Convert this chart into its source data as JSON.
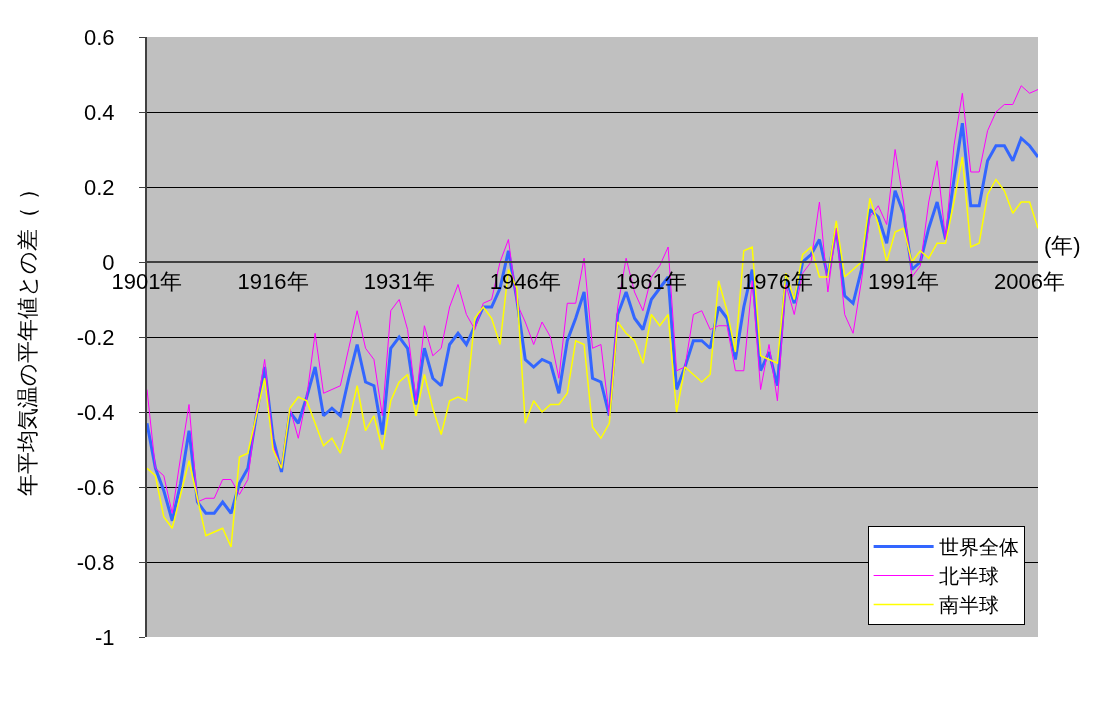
{
  "chart_data": {
    "type": "line",
    "xlabel": "(年)",
    "ylabel": "年平均気温の平年値との差（ ）",
    "x": [
      1901,
      1902,
      1903,
      1904,
      1905,
      1906,
      1907,
      1908,
      1909,
      1910,
      1911,
      1912,
      1913,
      1914,
      1915,
      1916,
      1917,
      1918,
      1919,
      1920,
      1921,
      1922,
      1923,
      1924,
      1925,
      1926,
      1927,
      1928,
      1929,
      1930,
      1931,
      1932,
      1933,
      1934,
      1935,
      1936,
      1937,
      1938,
      1939,
      1940,
      1941,
      1942,
      1943,
      1944,
      1945,
      1946,
      1947,
      1948,
      1949,
      1950,
      1951,
      1952,
      1953,
      1954,
      1955,
      1956,
      1957,
      1958,
      1959,
      1960,
      1961,
      1962,
      1963,
      1964,
      1965,
      1966,
      1967,
      1968,
      1969,
      1970,
      1971,
      1972,
      1973,
      1974,
      1975,
      1976,
      1977,
      1978,
      1979,
      1980,
      1981,
      1982,
      1983,
      1984,
      1985,
      1986,
      1987,
      1988,
      1989,
      1990,
      1991,
      1992,
      1993,
      1994,
      1995,
      1996,
      1997,
      1998,
      1999,
      2000,
      2001,
      2002,
      2003,
      2004,
      2005,
      2006,
      2007
    ],
    "series": [
      {
        "name": "世界全体",
        "color": "#3366ff",
        "values": [
          -0.43,
          -0.55,
          -0.61,
          -0.69,
          -0.59,
          -0.45,
          -0.64,
          -0.67,
          -0.67,
          -0.64,
          -0.67,
          -0.59,
          -0.55,
          -0.41,
          -0.28,
          -0.47,
          -0.56,
          -0.4,
          -0.43,
          -0.36,
          -0.28,
          -0.41,
          -0.39,
          -0.41,
          -0.31,
          -0.22,
          -0.32,
          -0.33,
          -0.46,
          -0.23,
          -0.2,
          -0.23,
          -0.38,
          -0.23,
          -0.31,
          -0.33,
          -0.22,
          -0.19,
          -0.22,
          -0.17,
          -0.12,
          -0.12,
          -0.07,
          0.03,
          -0.1,
          -0.26,
          -0.28,
          -0.26,
          -0.27,
          -0.35,
          -0.21,
          -0.15,
          -0.08,
          -0.31,
          -0.32,
          -0.41,
          -0.14,
          -0.08,
          -0.15,
          -0.18,
          -0.1,
          -0.07,
          -0.04,
          -0.34,
          -0.28,
          -0.21,
          -0.21,
          -0.23,
          -0.12,
          -0.15,
          -0.26,
          -0.12,
          -0.02,
          -0.29,
          -0.24,
          -0.33,
          -0.04,
          -0.11,
          0.0,
          0.02,
          0.06,
          -0.04,
          0.09,
          -0.09,
          -0.11,
          -0.02,
          0.14,
          0.12,
          0.05,
          0.19,
          0.13,
          -0.02,
          0.0,
          0.09,
          0.16,
          0.06,
          0.22,
          0.37,
          0.15,
          0.15,
          0.27,
          0.31,
          0.31,
          0.27,
          0.33,
          0.31,
          0.28
        ]
      },
      {
        "name": "北半球",
        "color": "#ff00ff",
        "values": [
          -0.34,
          -0.55,
          -0.57,
          -0.67,
          -0.52,
          -0.38,
          -0.64,
          -0.63,
          -0.63,
          -0.58,
          -0.58,
          -0.62,
          -0.58,
          -0.4,
          -0.26,
          -0.49,
          -0.55,
          -0.39,
          -0.47,
          -0.36,
          -0.19,
          -0.35,
          -0.34,
          -0.33,
          -0.23,
          -0.13,
          -0.23,
          -0.26,
          -0.41,
          -0.13,
          -0.1,
          -0.18,
          -0.37,
          -0.17,
          -0.25,
          -0.23,
          -0.12,
          -0.06,
          -0.14,
          -0.18,
          -0.11,
          -0.1,
          0.0,
          0.06,
          -0.11,
          -0.16,
          -0.22,
          -0.16,
          -0.2,
          -0.31,
          -0.11,
          -0.11,
          0.01,
          -0.23,
          -0.22,
          -0.41,
          -0.12,
          0.01,
          -0.08,
          -0.13,
          -0.04,
          -0.01,
          0.04,
          -0.29,
          -0.28,
          -0.14,
          -0.13,
          -0.18,
          -0.17,
          -0.17,
          -0.29,
          -0.29,
          -0.05,
          -0.34,
          -0.22,
          -0.37,
          -0.06,
          -0.14,
          -0.03,
          0.0,
          0.16,
          -0.08,
          0.09,
          -0.14,
          -0.19,
          -0.05,
          0.12,
          0.15,
          0.1,
          0.3,
          0.16,
          -0.04,
          -0.01,
          0.16,
          0.27,
          0.06,
          0.31,
          0.45,
          0.24,
          0.24,
          0.35,
          0.4,
          0.42,
          0.42,
          0.47,
          0.45,
          0.46
        ]
      },
      {
        "name": "南半球",
        "color": "#ffff00",
        "values": [
          -0.55,
          -0.57,
          -0.68,
          -0.71,
          -0.62,
          -0.53,
          -0.63,
          -0.73,
          -0.72,
          -0.71,
          -0.76,
          -0.52,
          -0.51,
          -0.41,
          -0.31,
          -0.5,
          -0.55,
          -0.39,
          -0.36,
          -0.37,
          -0.43,
          -0.49,
          -0.47,
          -0.51,
          -0.43,
          -0.33,
          -0.45,
          -0.41,
          -0.5,
          -0.37,
          -0.32,
          -0.3,
          -0.41,
          -0.3,
          -0.39,
          -0.46,
          -0.37,
          -0.36,
          -0.37,
          -0.15,
          -0.12,
          -0.15,
          -0.22,
          -0.02,
          -0.07,
          -0.43,
          -0.37,
          -0.4,
          -0.38,
          -0.38,
          -0.35,
          -0.21,
          -0.22,
          -0.44,
          -0.47,
          -0.43,
          -0.16,
          -0.19,
          -0.21,
          -0.27,
          -0.14,
          -0.17,
          -0.14,
          -0.4,
          -0.28,
          -0.3,
          -0.32,
          -0.3,
          -0.05,
          -0.13,
          -0.24,
          0.03,
          0.04,
          -0.25,
          -0.26,
          -0.27,
          -0.03,
          -0.1,
          0.02,
          0.04,
          -0.04,
          -0.04,
          0.11,
          -0.04,
          -0.02,
          0.0,
          0.17,
          0.1,
          0.0,
          0.08,
          0.09,
          0.0,
          0.03,
          0.01,
          0.05,
          0.05,
          0.16,
          0.28,
          0.04,
          0.05,
          0.18,
          0.22,
          0.19,
          0.13,
          0.16,
          0.16,
          0.09
        ]
      }
    ],
    "xlim": [
      1901,
      2007
    ],
    "xticks": [
      {
        "value": 1901,
        "label": "1901年"
      },
      {
        "value": 1916,
        "label": "1916年"
      },
      {
        "value": 1931,
        "label": "1931年"
      },
      {
        "value": 1946,
        "label": "1946年"
      },
      {
        "value": 1961,
        "label": "1961年"
      },
      {
        "value": 1976,
        "label": "1976年"
      },
      {
        "value": 1991,
        "label": "1991年"
      },
      {
        "value": 2006,
        "label": "2006年"
      }
    ],
    "ylim": [
      -1,
      0.6
    ],
    "yticks": [
      0.6,
      0.4,
      0.2,
      0,
      {
        "value": -0.2,
        "label": "-0.2"
      },
      {
        "value": -0.4,
        "label": "-0.4"
      },
      {
        "value": -0.6,
        "label": "-0.6"
      },
      {
        "value": -0.8,
        "label": "-0.8"
      },
      -1
    ],
    "grid": "y",
    "legend": "bottom right",
    "marker": "none",
    "line_style": "solid"
  }
}
